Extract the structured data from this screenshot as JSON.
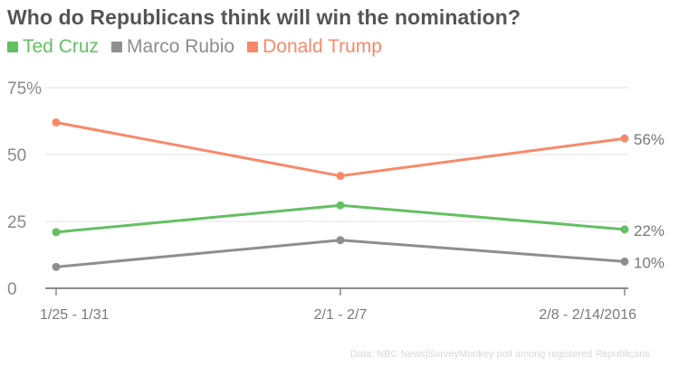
{
  "chart_data": {
    "type": "line",
    "title": "Who do Republicans think will win the nomination?",
    "categories": [
      "1/25 - 1/31",
      "2/1 - 2/7",
      "2/8 - 2/14/2016"
    ],
    "series": [
      {
        "name": "Ted Cruz",
        "color": "#64bf63",
        "values": [
          21,
          31,
          22
        ],
        "end_label": "22%"
      },
      {
        "name": "Marco Rubio",
        "color": "#8e8e8e",
        "values": [
          8,
          18,
          10
        ],
        "end_label": "10%"
      },
      {
        "name": "Donald Trump",
        "color": "#f7896a",
        "values": [
          62,
          42,
          56
        ],
        "end_label": "56%"
      }
    ],
    "yticks": [
      "75%",
      "50",
      "25",
      "0"
    ],
    "ylim": [
      0,
      75
    ],
    "grid": true,
    "legend_position": "top-left",
    "source": "Data: NBC News|SurveyMonkey poll among registered Republicans"
  }
}
